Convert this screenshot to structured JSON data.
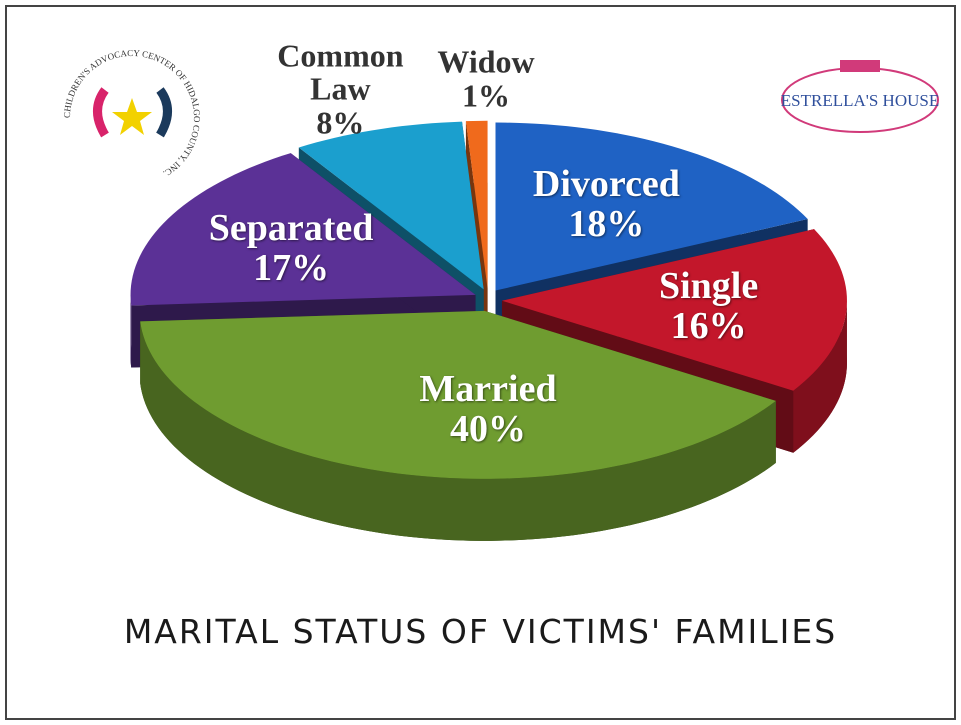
{
  "chart_data": {
    "type": "pie3d",
    "title": "MARITAL STATUS OF VICTIMS' FAMILIES",
    "categories": [
      "Divorced",
      "Single",
      "Married",
      "Separated",
      "Common Law",
      "Widow"
    ],
    "values": [
      18,
      16,
      40,
      17,
      8,
      1
    ],
    "value_labels": [
      "18%",
      "16%",
      "40%",
      "17%",
      "8%",
      "1%"
    ],
    "colors": [
      "#1f62c4",
      "#c3172b",
      "#6f9c30",
      "#5b3196",
      "#1b9fce",
      "#f06a1c"
    ]
  },
  "logos": {
    "left": "CHILDREN'S ADVOCACY CENTER OF HIDALGO COUNTY, INC.",
    "right": "ESTRELLA'S HOUSE"
  }
}
